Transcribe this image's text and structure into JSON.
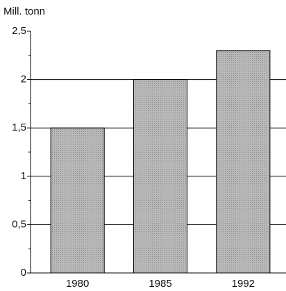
{
  "chart_data": {
    "type": "bar",
    "y_label": "Mill. tonn",
    "categories": [
      "1980",
      "1985",
      "1992"
    ],
    "values": [
      1.5,
      2,
      2.3
    ],
    "color": "#ababab",
    "ylim": [
      0,
      2.5
    ],
    "yticks": [
      0,
      {
        "value": 0.5,
        "label": "0,5"
      },
      1,
      {
        "value": 1.5,
        "label": "1,5"
      },
      2,
      {
        "value": 2.5,
        "label": "2,5"
      }
    ],
    "minor_yticks": [
      0.25,
      0.75,
      1.25,
      1.75,
      2.25
    ],
    "grid": true
  }
}
